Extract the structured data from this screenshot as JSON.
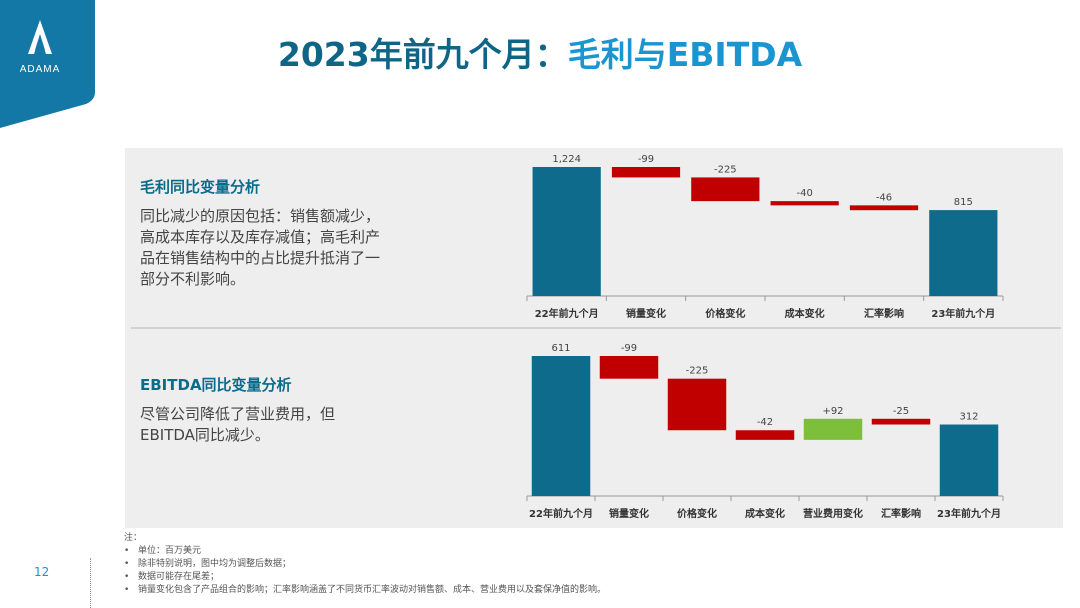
{
  "header": {
    "title_part1": "2023年前九个月：",
    "title_part2": "毛利与EBITDA",
    "logo_text": "ADAMA"
  },
  "sections": [
    {
      "title": "毛利同比变量分析",
      "body": [
        "同比减少的原因包括：销售额减少，",
        "高成本库存以及库存减值；高毛利产",
        "品在销售结构中的占比提升抵消了一",
        "部分不利影响。"
      ]
    },
    {
      "title": "EBITDA同比变量分析",
      "body": [
        "尽管公司降低了营业费用，但",
        "EBITDA同比减少。"
      ]
    }
  ],
  "chart_data": [
    {
      "type": "bar",
      "subtype": "waterfall",
      "categories": [
        "22年前九个月",
        "销量变化",
        "价格变化",
        "成本变化",
        "汇率影响",
        "23年前九个月"
      ],
      "values": [
        1224,
        -99,
        -225,
        -40,
        -46,
        815
      ],
      "labels": [
        "1,224",
        "-99",
        "-225",
        "-40",
        "-46",
        "815"
      ],
      "kinds": [
        "total",
        "delta",
        "delta",
        "delta",
        "delta",
        "total"
      ]
    },
    {
      "type": "bar",
      "subtype": "waterfall",
      "categories": [
        "22年前九个月",
        "销量变化",
        "价格变化",
        "成本变化",
        "营业费用变化",
        "汇率影响",
        "23年前九个月"
      ],
      "values": [
        611,
        -99,
        -225,
        -42,
        92,
        -25,
        312
      ],
      "labels": [
        "611",
        "-99",
        "-225",
        "-42",
        "+92",
        "-25",
        "312"
      ],
      "kinds": [
        "total",
        "delta",
        "delta",
        "delta",
        "delta",
        "delta",
        "total"
      ]
    }
  ],
  "colors": {
    "total": "#0e6b8c",
    "negative": "#c00000",
    "positive": "#7dbf3a",
    "title_dark": "#0e6585",
    "title_light": "#1a95cf"
  },
  "notes": {
    "heading": "注：",
    "items": [
      "单位：百万美元",
      "除非特别说明，图中均为调整后数据；",
      "数据可能存在尾差；",
      "销量变化包含了产品组合的影响；汇率影响涵盖了不同货币汇率波动对销售额、成本、营业费用以及套保净值的影响。"
    ]
  },
  "page_number": "12"
}
